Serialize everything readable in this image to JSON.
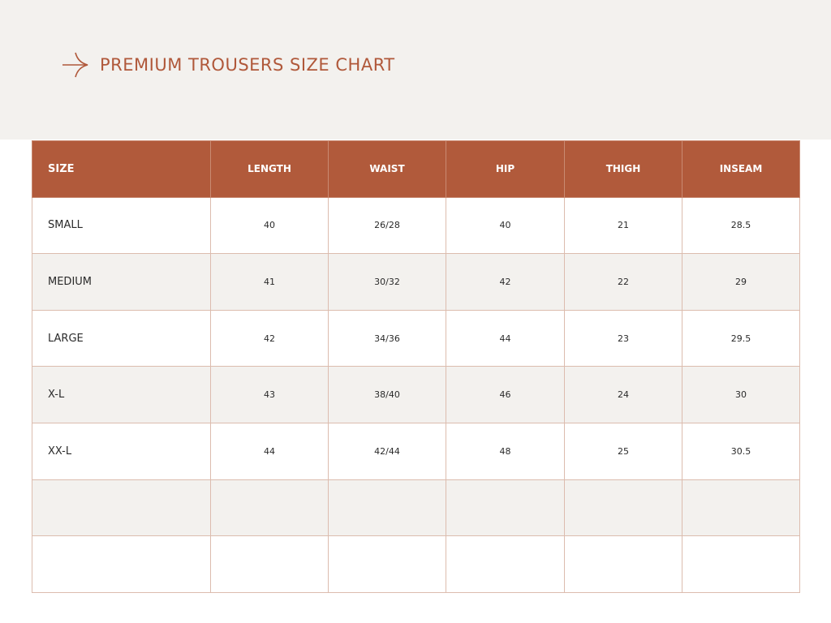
{
  "header": {
    "title": "PREMIUM TROUSERS SIZE CHART"
  },
  "table": {
    "headers": [
      "SIZE",
      "LENGTH",
      "WAIST",
      "HIP",
      "THIGH",
      "INSEAM"
    ],
    "rows": [
      [
        "SMALL",
        "40",
        "26/28",
        "40",
        "21",
        "28.5"
      ],
      [
        "MEDIUM",
        "41",
        "30/32",
        "42",
        "22",
        "29"
      ],
      [
        "LARGE",
        "42",
        "34/36",
        "44",
        "23",
        "29.5"
      ],
      [
        "X-L",
        "43",
        "38/40",
        "46",
        "24",
        "30"
      ],
      [
        "XX-L",
        "44",
        "42/44",
        "48",
        "25",
        "30.5"
      ]
    ]
  }
}
